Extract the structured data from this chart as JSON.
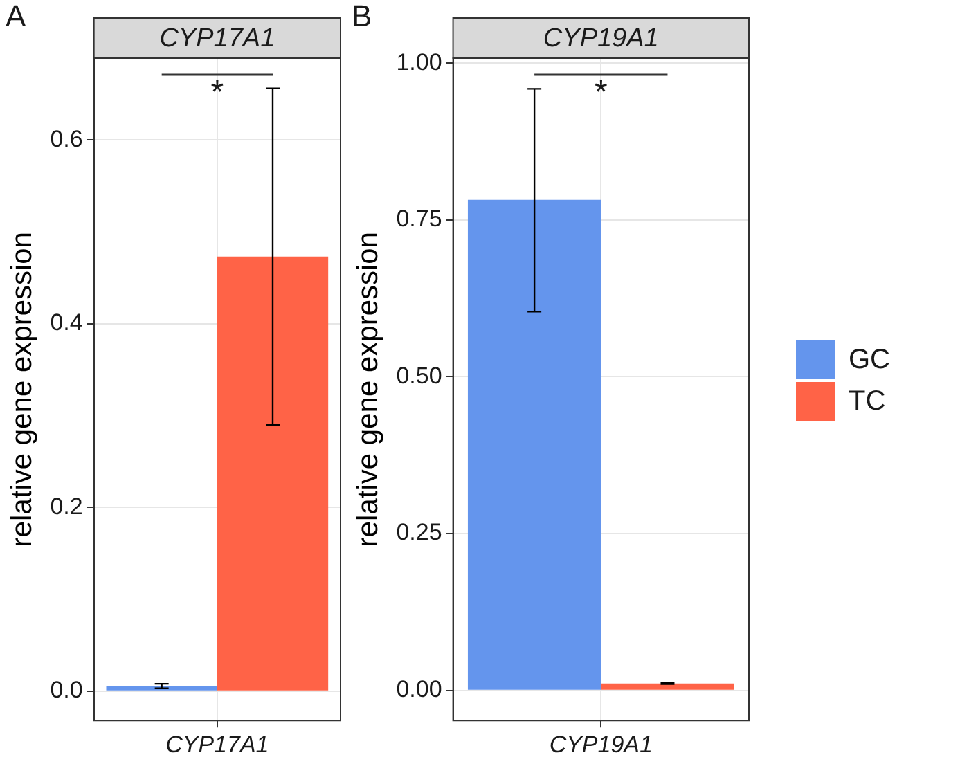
{
  "chart_data": [
    {
      "type": "bar",
      "title": "CYP17A1",
      "ylabel": "relative gene expression",
      "categories": [
        "CYP17A1"
      ],
      "series": [
        {
          "color": "#6495ed",
          "values": [
            0.005
          ],
          "errors": [
            [
              0.003,
              0.008
            ]
          ]
        },
        {
          "color": "#ff6347",
          "values": [
            0.473
          ],
          "errors": [
            [
              0.29,
              0.656
            ]
          ]
        }
      ],
      "ylim": [
        -0.032,
        0.689
      ],
      "yticks": [
        {
          "value": 0,
          "label": "0.0"
        },
        {
          "value": 0.2,
          "label": "0.2"
        },
        {
          "value": 0.4,
          "label": "0.4"
        },
        {
          "value": 0.6,
          "label": "0.6"
        }
      ],
      "grid": true,
      "legend": false,
      "annotations": [
        "A",
        "*"
      ]
    },
    {
      "type": "bar",
      "title": "CYP19A1",
      "ylabel": "relative gene expression",
      "categories": [
        "CYP19A1"
      ],
      "series": [
        {
          "name": "GC",
          "color": "#6495ed",
          "values": [
            0.782
          ],
          "errors": [
            [
              0.604,
              0.959
            ]
          ]
        },
        {
          "name": "TC",
          "color": "#ff6347",
          "values": [
            0.011
          ],
          "errors": [
            [
              0.01,
              0.012
            ]
          ]
        }
      ],
      "ylim": [
        -0.048,
        1.008
      ],
      "yticks": [
        {
          "value": 0,
          "label": "0.00"
        },
        {
          "value": 0.25,
          "label": "0.25"
        },
        {
          "value": 0.5,
          "label": "0.50"
        },
        {
          "value": 0.75,
          "label": "0.75"
        },
        {
          "value": 1,
          "label": "1.00"
        }
      ],
      "grid": true,
      "legend": "right",
      "annotations": [
        "B",
        "*"
      ]
    }
  ]
}
